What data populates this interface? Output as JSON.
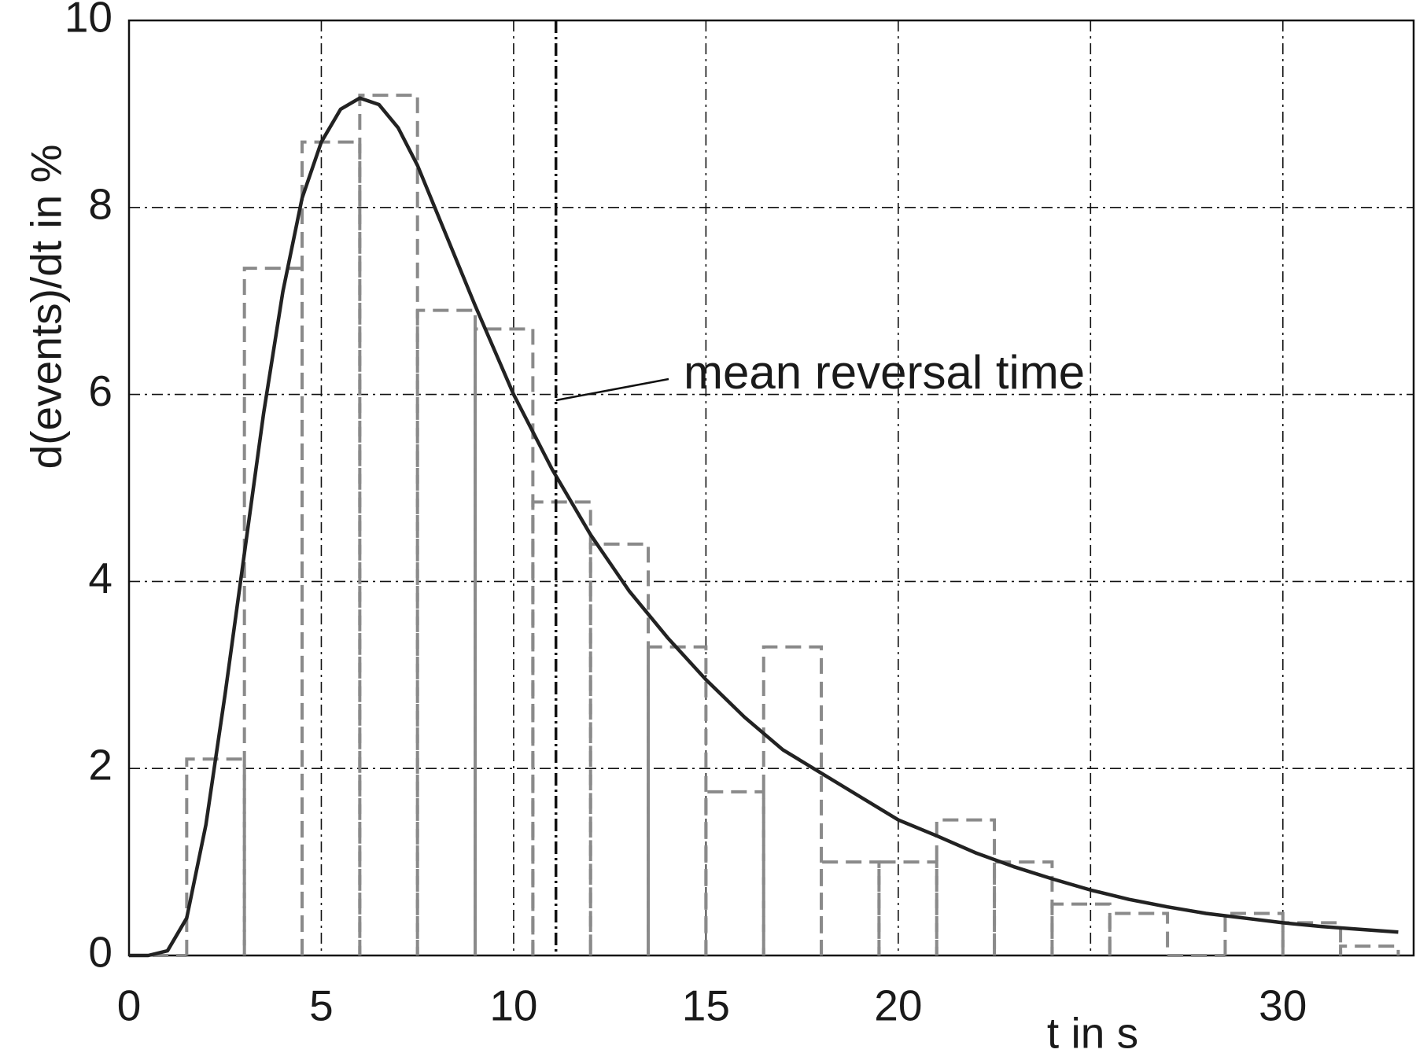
{
  "chart_data": {
    "type": "line",
    "ylabel": "d(events)/dt in %",
    "xlabel": "t in s",
    "x": [
      0,
      0.5,
      1,
      1.5,
      2,
      2.5,
      3,
      3.5,
      4,
      4.5,
      5,
      5.5,
      6,
      6.5,
      7,
      7.5,
      8,
      9,
      10,
      11,
      12,
      13,
      14,
      15,
      16,
      17,
      18,
      19,
      20,
      21,
      22,
      23,
      24,
      25,
      26,
      27,
      28,
      29,
      30,
      31,
      32,
      33
    ],
    "values": [
      0,
      0,
      0.05,
      0.4,
      1.4,
      2.8,
      4.3,
      5.8,
      7.1,
      8.1,
      8.7,
      9.05,
      9.17,
      9.1,
      8.85,
      8.45,
      7.95,
      6.95,
      6.0,
      5.2,
      4.5,
      3.9,
      3.4,
      2.95,
      2.55,
      2.2,
      1.95,
      1.7,
      1.45,
      1.28,
      1.1,
      0.95,
      0.82,
      0.7,
      0.6,
      0.52,
      0.45,
      0.4,
      0.35,
      0.31,
      0.28,
      0.25
    ],
    "color": "#222222",
    "histogram": {
      "type": "histogram",
      "bins": [
        0,
        1.5,
        3,
        4.5,
        6,
        7.5,
        9,
        10.5,
        12,
        13.5,
        15,
        16.5,
        18,
        19.5,
        21,
        22.5,
        24,
        25.5,
        27,
        28.5,
        30,
        31.5,
        33
      ],
      "counts": [
        0,
        2.1,
        7.35,
        8.7,
        9.2,
        6.9,
        6.7,
        4.85,
        4.4,
        3.3,
        1.75,
        3.3,
        1.0,
        1.0,
        1.45,
        1.0,
        0.55,
        0.45,
        0,
        0.45,
        0.35,
        0.1
      ],
      "color": "#8a8a8a"
    },
    "annotation": {
      "label": "mean reversal time",
      "x": 11.1
    },
    "xlim": [
      0,
      33.4
    ],
    "ylim": [
      0,
      10
    ],
    "xticks": [
      0,
      5,
      10,
      15,
      20,
      30
    ],
    "x_grid": [
      0,
      5,
      10,
      15,
      20,
      25,
      30
    ],
    "yticks": [
      0,
      2,
      4,
      6,
      8,
      10
    ],
    "grid": true
  }
}
